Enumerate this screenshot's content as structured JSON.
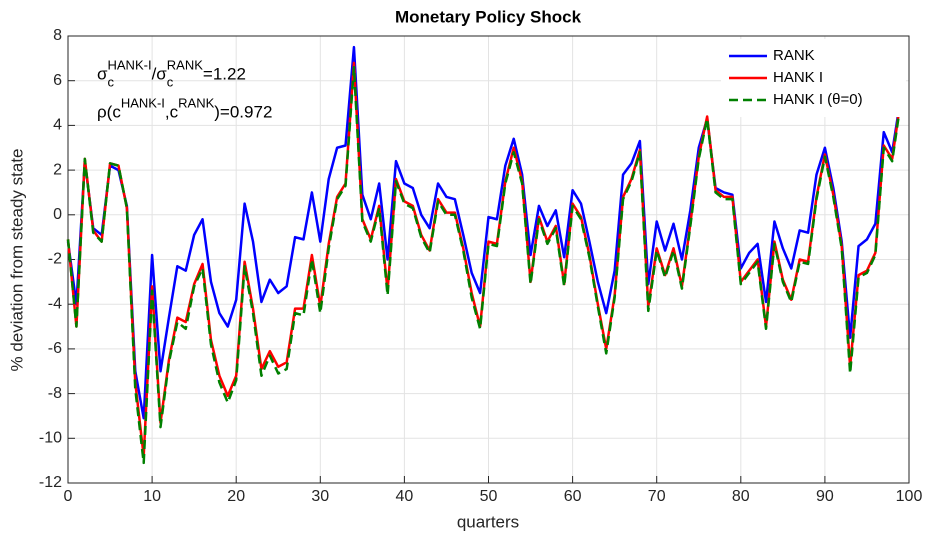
{
  "chart_data": {
    "type": "line",
    "title": "Monetary Policy Shock",
    "x_label": "quarters",
    "y_label": "% deviation from steady state",
    "x": [
      0,
      1,
      2,
      3,
      4,
      5,
      6,
      7,
      8,
      9,
      10,
      11,
      12,
      13,
      14,
      15,
      16,
      17,
      18,
      19,
      20,
      21,
      22,
      23,
      24,
      25,
      26,
      27,
      28,
      29,
      30,
      31,
      32,
      33,
      34,
      35,
      36,
      37,
      38,
      39,
      40,
      41,
      42,
      43,
      44,
      45,
      46,
      47,
      48,
      49,
      50,
      51,
      52,
      53,
      54,
      55,
      56,
      57,
      58,
      59,
      60,
      61,
      62,
      63,
      64,
      65,
      66,
      67,
      68,
      69,
      70,
      71,
      72,
      73,
      74,
      75,
      76,
      77,
      78,
      79,
      80,
      81,
      82,
      83,
      84,
      85,
      86,
      87,
      88,
      89,
      90,
      91,
      92,
      93,
      94,
      95,
      96,
      97,
      98,
      99
    ],
    "series": [
      {
        "name": "RANK",
        "color": "#0000ff",
        "dashed": false,
        "values": [
          -1.2,
          -4,
          2.4,
          -0.6,
          -0.9,
          2.2,
          2.0,
          0.4,
          -7,
          -9.1,
          -1.8,
          -7,
          -4.6,
          -2.3,
          -2.5,
          -0.9,
          -0.2,
          -3,
          -4.4,
          -5,
          -3.8,
          0.5,
          -1.2,
          -3.9,
          -2.9,
          -3.5,
          -3.2,
          -1,
          -1.1,
          1,
          -1.2,
          1.6,
          3,
          3.1,
          7.5,
          0.9,
          -0.2,
          1.4,
          -2,
          2.4,
          1.4,
          1.2,
          0,
          -0.6,
          1.4,
          0.8,
          0.7,
          -0.9,
          -2.6,
          -3.5,
          -0.1,
          -0.2,
          2.2,
          3.4,
          1.8,
          -1.8,
          0.4,
          -0.5,
          0.2,
          -1.9,
          1.1,
          0.5,
          -1.2,
          -3,
          -4.4,
          -2.5,
          1.8,
          2.3,
          3.3,
          -3.1,
          -0.3,
          -1.6,
          -0.4,
          -2,
          0.2,
          3,
          4.3,
          1.2,
          1,
          0.9,
          -2.4,
          -1.7,
          -1.3,
          -3.9,
          -0.3,
          -1.5,
          -2.4,
          -0.7,
          -0.8,
          1.8,
          3,
          1.2,
          -1.2,
          -5.5,
          -1.4,
          -1.1,
          -0.4,
          3.7,
          2.8,
          5.2
        ]
      },
      {
        "name": "HANK I",
        "color": "#ff0000",
        "dashed": false,
        "values": [
          -1.1,
          -5,
          2.5,
          -0.7,
          -1.2,
          2.3,
          2.2,
          0.3,
          -7.5,
          -10.8,
          -3.2,
          -9.3,
          -6.5,
          -4.6,
          -4.8,
          -3.1,
          -2.2,
          -5.6,
          -7.2,
          -8.1,
          -7.2,
          -2.1,
          -4.2,
          -6.9,
          -6.1,
          -6.8,
          -6.6,
          -4.2,
          -4.2,
          -1.8,
          -4.1,
          -1.3,
          0.8,
          1.4,
          6.8,
          -0.2,
          -1.1,
          0.4,
          -3.4,
          1.6,
          0.6,
          0.4,
          -0.9,
          -1.6,
          0.7,
          0.1,
          0.1,
          -1.5,
          -3.5,
          -5,
          -1.2,
          -1.3,
          1.5,
          3,
          1.5,
          -3,
          -0.1,
          -1.2,
          -0.5,
          -3.1,
          0.5,
          -0.1,
          -1.8,
          -4,
          -6,
          -3.6,
          0.8,
          1.6,
          2.9,
          -4.1,
          -1.5,
          -2.7,
          -1.5,
          -3.2,
          -0.4,
          2.6,
          4.4,
          1.1,
          0.8,
          0.8,
          -3,
          -2.5,
          -2,
          -5,
          -1.2,
          -2.9,
          -3.8,
          -2,
          -2.1,
          0.8,
          2.7,
          0.9,
          -1.4,
          -6.8,
          -2.7,
          -2.5,
          -1.7,
          3.1,
          2.5,
          5.1
        ]
      },
      {
        "name": "HANK I (θ=0)",
        "color": "#008000",
        "dashed": true,
        "values": [
          -1.1,
          -5,
          2.5,
          -0.8,
          -1.2,
          2.3,
          2.2,
          0.3,
          -7.8,
          -11.1,
          -3.4,
          -9.5,
          -6.6,
          -4.8,
          -5.1,
          -3.2,
          -2.4,
          -5.8,
          -7.5,
          -8.4,
          -7.4,
          -2.3,
          -4.4,
          -7.2,
          -6.3,
          -7.1,
          -6.9,
          -4.4,
          -4.5,
          -2,
          -4.4,
          -1.5,
          0.7,
          1.3,
          6.6,
          -0.3,
          -1.2,
          0.3,
          -3.6,
          1.5,
          0.5,
          0.3,
          -1,
          -1.7,
          0.6,
          0,
          0,
          -1.6,
          -3.7,
          -5.1,
          -1.3,
          -1.4,
          1.4,
          2.8,
          1.4,
          -3.1,
          -0.2,
          -1.3,
          -0.6,
          -3.2,
          0.4,
          -0.2,
          -1.9,
          -4.1,
          -6.2,
          -3.7,
          0.7,
          1.5,
          2.8,
          -4.3,
          -1.6,
          -2.8,
          -1.6,
          -3.3,
          -0.5,
          2.5,
          4.3,
          1,
          0.7,
          0.7,
          -3.1,
          -2.6,
          -2.1,
          -5.1,
          -1.3,
          -3,
          -3.9,
          -2.1,
          -2.2,
          0.7,
          2.6,
          0.8,
          -1.5,
          -7.1,
          -2.8,
          -2.6,
          -1.8,
          3,
          2.4,
          5
        ]
      }
    ],
    "annotations": [
      [
        "σ",
        "c",
        "HANK-I",
        "/σ",
        "c",
        "RANK",
        "=1.22"
      ],
      [
        "ρ(c",
        "HANK-I",
        ",c",
        "RANK",
        ")=0.972"
      ]
    ],
    "xlim": [
      0,
      100
    ],
    "xticks": [
      0,
      10,
      20,
      30,
      40,
      50,
      60,
      70,
      80,
      90,
      100
    ],
    "ylim": [
      -12,
      8
    ],
    "yticks": [
      -12,
      -10,
      -8,
      -6,
      -4,
      -2,
      0,
      2,
      4,
      6,
      8
    ],
    "grid": true,
    "legend": "northeast"
  }
}
